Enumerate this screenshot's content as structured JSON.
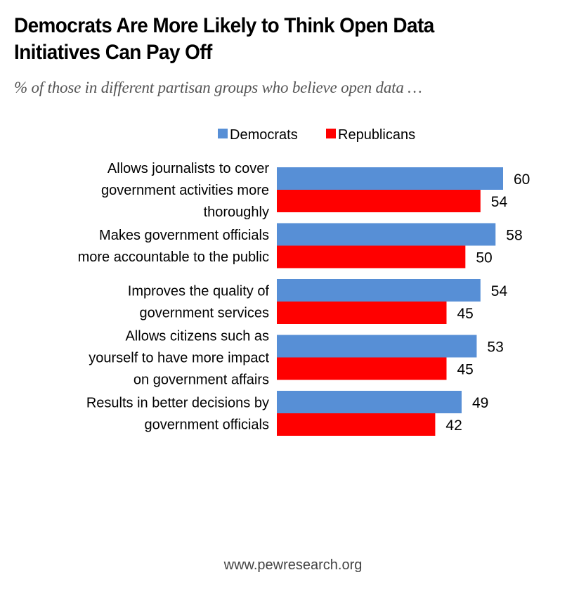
{
  "header": {
    "title_line1": "Democrats Are More Likely to Think Open Data",
    "title_line2": "Initiatives Can Pay Off",
    "subtitle": "% of those in different partisan groups who believe open data …"
  },
  "footer": {
    "source": "www.pewresearch.org"
  },
  "chart_data": {
    "type": "bar",
    "orientation": "horizontal",
    "title": "Democrats Are More Likely to Think Open Data Initiatives Can Pay Off",
    "subtitle": "% of those in different partisan groups who believe open data …",
    "xlabel": "",
    "ylabel": "",
    "xlim": [
      0,
      60
    ],
    "grid": false,
    "legend": {
      "position": "top",
      "entries": [
        "Democrats",
        "Republicans"
      ]
    },
    "categories": [
      [
        "Allows journalists to cover",
        "government activities more",
        "thoroughly"
      ],
      [
        "Makes government officials",
        "more accountable to the public"
      ],
      [
        "Improves the quality of",
        "government services"
      ],
      [
        "Allows citizens such as",
        "yourself to have more impact",
        "on government affairs"
      ],
      [
        "Results in better decisions by",
        "government officials"
      ]
    ],
    "series": [
      {
        "name": "Democrats",
        "color": "#578fd6",
        "values": [
          60,
          58,
          54,
          53,
          49
        ]
      },
      {
        "name": "Republicans",
        "color": "#ff0000",
        "values": [
          54,
          50,
          45,
          45,
          42
        ]
      }
    ],
    "data_labels": true
  }
}
